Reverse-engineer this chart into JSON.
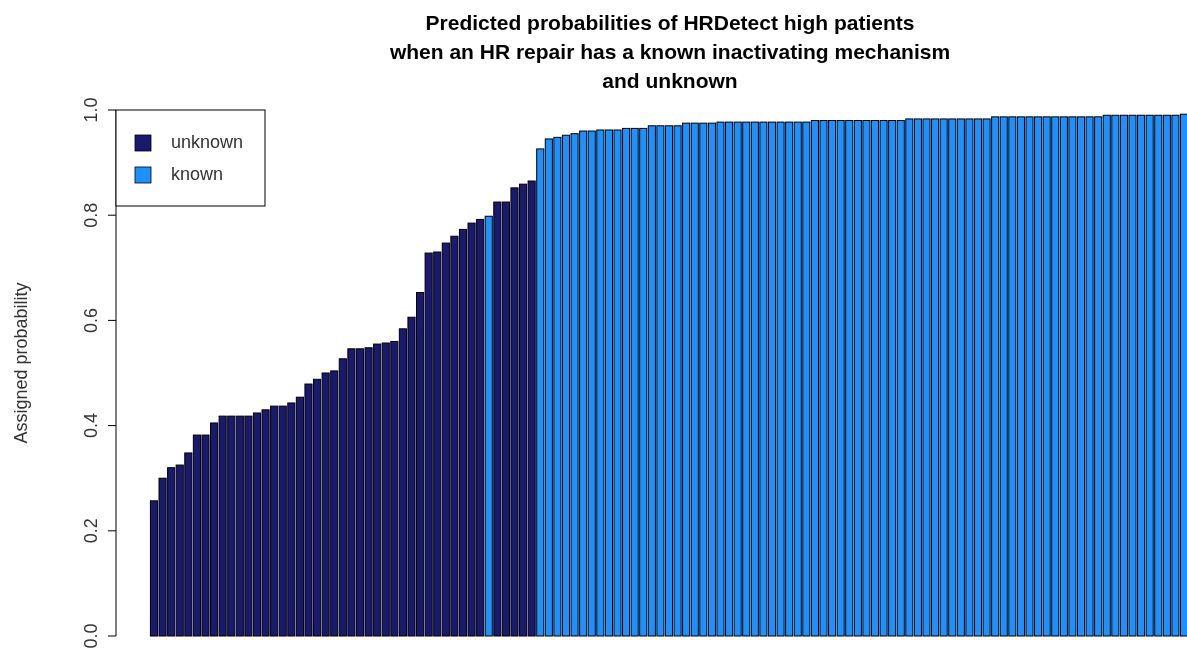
{
  "chart_data": {
    "type": "bar",
    "title": "Predicted probabilities of HRDetect high patients\nwhen an HR repair has a known inactivating mechanism\nand unknown",
    "ylabel": "Assigned probability",
    "categories": [
      null,
      null,
      null,
      null,
      null,
      null,
      null,
      null,
      null,
      null,
      null,
      null,
      null,
      null,
      null,
      null,
      null,
      null,
      null,
      null,
      null,
      null,
      null,
      null,
      null,
      null,
      null,
      null,
      null,
      null,
      null,
      null,
      null,
      null,
      null,
      null,
      null,
      null,
      null,
      null,
      null,
      null,
      null,
      null,
      null,
      null,
      null,
      null,
      null,
      null,
      null,
      null,
      null,
      null,
      null,
      null,
      null,
      null,
      null,
      null,
      null,
      null,
      null,
      null,
      null,
      null,
      null,
      null,
      null,
      null,
      null,
      null,
      null,
      null,
      null,
      null,
      null,
      null,
      null,
      null,
      null,
      null,
      null,
      null,
      null,
      null,
      null,
      null,
      null,
      null,
      null,
      null,
      null,
      null,
      null,
      null,
      null,
      null,
      null,
      null,
      null,
      null,
      null,
      null,
      null,
      null,
      null,
      null,
      null,
      null,
      null,
      null,
      null,
      null,
      null,
      null,
      null,
      null,
      null,
      null,
      null
    ],
    "stacked": true,
    "series": [
      {
        "name": "unknown",
        "color": "#191970",
        "values": [
          0.257,
          0.3,
          0.32,
          0.325,
          0.348,
          0.382,
          0.382,
          0.405,
          0.418,
          0.418,
          0.418,
          0.418,
          0.424,
          0.43,
          0.437,
          0.437,
          0.443,
          0.454,
          0.479,
          0.488,
          0.5,
          0.504,
          0.527,
          0.546,
          0.546,
          0.548,
          0.555,
          0.557,
          0.56,
          0.584,
          0.606,
          0.653,
          0.728,
          0.73,
          0.747,
          0.76,
          0.773,
          0.785,
          0.792,
          null,
          0.825,
          0.825,
          0.852,
          0.859,
          0.865,
          null,
          null,
          null,
          null,
          null,
          null,
          null,
          null,
          null,
          null,
          null,
          null,
          null,
          null,
          null,
          null,
          null,
          null,
          null,
          null,
          null,
          null,
          null,
          null,
          null,
          null,
          null,
          null,
          null,
          null,
          null,
          null,
          null,
          null,
          null,
          null,
          null,
          null,
          null,
          null,
          null,
          null,
          null,
          null,
          null,
          null,
          null,
          null,
          null,
          null,
          null,
          null,
          null,
          null,
          null,
          null,
          null,
          null,
          null,
          null,
          null,
          null,
          null,
          null,
          null,
          null,
          null,
          null,
          null,
          null,
          null,
          null,
          null,
          null,
          null,
          null
        ]
      },
      {
        "name": "known",
        "color": "#1e90ff",
        "values": [
          null,
          null,
          null,
          null,
          null,
          null,
          null,
          null,
          null,
          null,
          null,
          null,
          null,
          null,
          null,
          null,
          null,
          null,
          null,
          null,
          null,
          null,
          null,
          null,
          null,
          null,
          null,
          null,
          null,
          null,
          null,
          null,
          null,
          null,
          null,
          null,
          null,
          null,
          null,
          0.798,
          null,
          null,
          null,
          null,
          null,
          0.926,
          0.945,
          0.948,
          0.952,
          0.955,
          0.96,
          0.96,
          0.962,
          0.962,
          0.962,
          0.965,
          0.965,
          0.965,
          0.97,
          0.97,
          0.97,
          0.97,
          0.975,
          0.975,
          0.975,
          0.975,
          0.977,
          0.977,
          0.977,
          0.977,
          0.977,
          0.977,
          0.977,
          0.977,
          0.977,
          0.977,
          0.977,
          0.98,
          0.98,
          0.98,
          0.98,
          0.98,
          0.98,
          0.98,
          0.98,
          0.98,
          0.98,
          0.98,
          0.983,
          0.983,
          0.983,
          0.983,
          0.983,
          0.983,
          0.983,
          0.983,
          0.983,
          0.983,
          0.987,
          0.987,
          0.987,
          0.987,
          0.987,
          0.987,
          0.987,
          0.987,
          0.987,
          0.987,
          0.987,
          0.987,
          0.987,
          0.99,
          0.99,
          0.99,
          0.99,
          0.99,
          0.99,
          0.99,
          0.99,
          0.99,
          0.992
        ]
      }
    ],
    "ylim": [
      0,
      1
    ],
    "yticks": [
      {
        "value": 0,
        "label": "0.0"
      },
      {
        "value": 0.2,
        "label": "0.2"
      },
      {
        "value": 0.4,
        "label": "0.4"
      },
      {
        "value": 0.6,
        "label": "0.6"
      },
      {
        "value": 0.8,
        "label": "0.8"
      },
      {
        "value": 1,
        "label": "1.0"
      }
    ],
    "legend": "top left"
  }
}
